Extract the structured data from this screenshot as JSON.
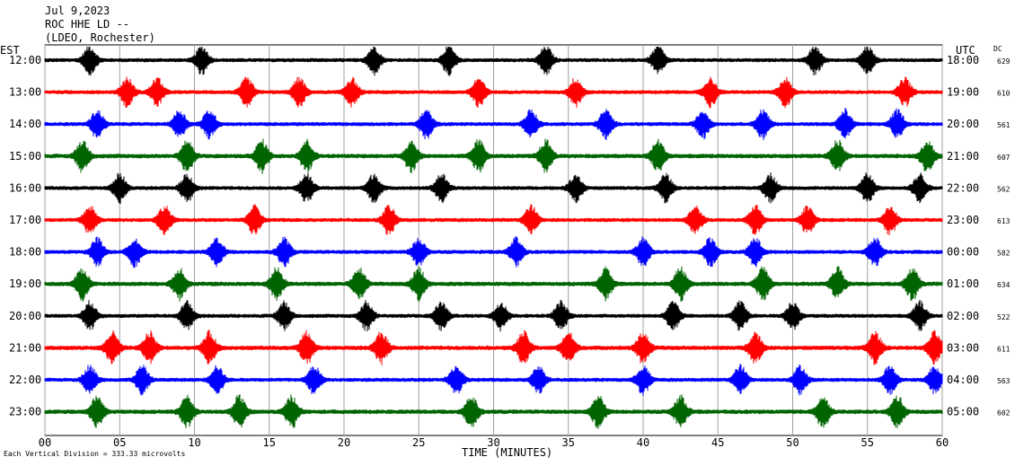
{
  "header": {
    "date": "Jul 9,2023",
    "station": "ROC HHE LD --",
    "network": "(LDEO, Rochester)"
  },
  "left_axis_title": "EST",
  "right_axis_title": "UTC",
  "dc_title": "DC",
  "footer_note": "Each Vertical Division =  333.33 microvolts",
  "chart_data": {
    "type": "line",
    "title": "",
    "xlabel": "TIME (MINUTES)",
    "ylabel": "",
    "xlim": [
      0,
      60
    ],
    "x_ticks": [
      "00",
      "05",
      "10",
      "15",
      "20",
      "25",
      "30",
      "35",
      "40",
      "45",
      "50",
      "55",
      "60"
    ],
    "grid": true,
    "colors": [
      "#000000",
      "#ff0000",
      "#0000ff",
      "#006400"
    ],
    "rows": [
      {
        "est": "12:00",
        "utc": "18:00",
        "dc": "629",
        "color": "#000000",
        "amp": 9,
        "bursts": [
          3,
          10.5,
          22,
          27,
          33.5,
          41,
          51.5,
          55
        ]
      },
      {
        "est": "13:00",
        "utc": "19:00",
        "dc": "610",
        "color": "#ff0000",
        "amp": 9,
        "bursts": [
          5.5,
          7.5,
          13.5,
          17,
          20.5,
          29,
          35.5,
          44.5,
          49.5,
          57.5
        ]
      },
      {
        "est": "14:00",
        "utc": "20:00",
        "dc": "561",
        "color": "#0000ff",
        "amp": 9,
        "bursts": [
          3.5,
          9,
          11,
          25.5,
          32.5,
          37.5,
          44,
          48,
          53.5,
          57
        ]
      },
      {
        "est": "15:00",
        "utc": "21:00",
        "dc": "607",
        "color": "#006400",
        "amp": 10,
        "bursts": [
          2.5,
          9.5,
          14.5,
          17.5,
          24.5,
          29,
          33.5,
          41,
          53,
          59
        ]
      },
      {
        "est": "16:00",
        "utc": "22:00",
        "dc": "562",
        "color": "#000000",
        "amp": 9,
        "bursts": [
          5,
          9.5,
          17.5,
          22,
          26.5,
          35.5,
          41.5,
          48.5,
          55,
          58.5
        ]
      },
      {
        "est": "17:00",
        "utc": "23:00",
        "dc": "613",
        "color": "#ff0000",
        "amp": 9,
        "bursts": [
          3,
          8,
          14,
          23,
          32.5,
          43.5,
          47.5,
          51,
          56.5
        ]
      },
      {
        "est": "18:00",
        "utc": "00:00",
        "dc": "582",
        "color": "#0000ff",
        "amp": 9,
        "bursts": [
          3.5,
          6,
          11.5,
          16,
          25,
          31.5,
          40,
          44.5,
          47.5,
          55.5
        ]
      },
      {
        "est": "19:00",
        "utc": "01:00",
        "dc": "634",
        "color": "#006400",
        "amp": 10,
        "bursts": [
          2.5,
          9,
          15.5,
          21,
          25,
          37.5,
          42.5,
          48,
          53,
          58
        ]
      },
      {
        "est": "20:00",
        "utc": "02:00",
        "dc": "522",
        "color": "#000000",
        "amp": 9,
        "bursts": [
          3,
          9.5,
          16,
          21.5,
          26.5,
          30.5,
          34.5,
          42,
          46.5,
          50,
          58.5
        ]
      },
      {
        "est": "21:00",
        "utc": "03:00",
        "dc": "611",
        "color": "#ff0000",
        "amp": 10,
        "bursts": [
          4.5,
          7,
          11,
          17.5,
          22.5,
          32,
          35,
          40,
          47.5,
          55.5,
          59.5
        ]
      },
      {
        "est": "22:00",
        "utc": "04:00",
        "dc": "563",
        "color": "#0000ff",
        "amp": 9,
        "bursts": [
          3,
          6.5,
          11.5,
          18,
          27.5,
          33,
          40,
          46.5,
          50.5,
          56.5,
          59.5
        ]
      },
      {
        "est": "23:00",
        "utc": "05:00",
        "dc": "602",
        "color": "#006400",
        "amp": 10,
        "bursts": [
          3.5,
          9.5,
          13,
          16.5,
          28.5,
          37,
          42.5,
          52,
          57
        ]
      }
    ]
  }
}
